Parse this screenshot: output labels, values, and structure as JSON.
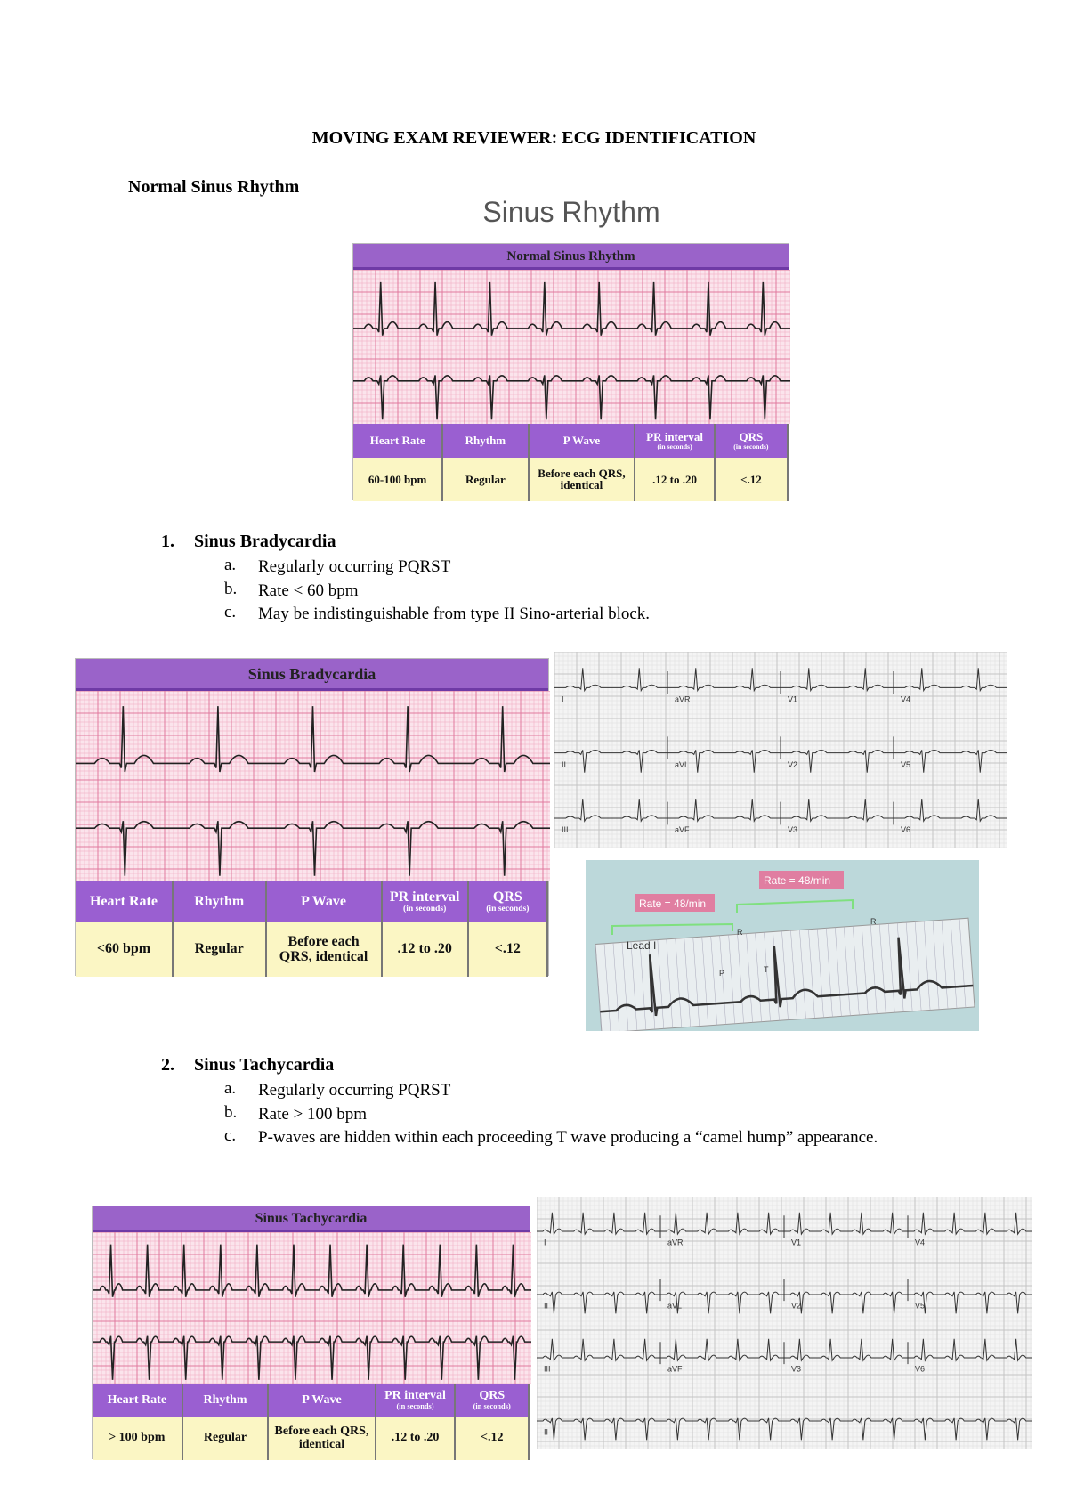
{
  "header": {
    "title": "MOVING EXAM REVIEWER: ECG IDENTIFICATION"
  },
  "normal": {
    "heading": "Normal Sinus Rhythm",
    "figure_title": "Sinus Rhythm",
    "card": {
      "title": "Normal Sinus Rhythm",
      "columns": [
        {
          "label": "Heart Rate"
        },
        {
          "label": "Rhythm"
        },
        {
          "label": "P Wave"
        },
        {
          "label": "PR interval",
          "note": "(in seconds)"
        },
        {
          "label": "QRS",
          "note": "(in seconds)"
        }
      ],
      "values": [
        "60-100 bpm",
        "Regular",
        "Before each QRS, identical",
        ".12 to .20",
        "<.12"
      ]
    }
  },
  "bradycardia": {
    "number": "1.",
    "heading": "Sinus Bradycardia",
    "items": [
      {
        "marker": "a.",
        "text": "Regularly occurring PQRST"
      },
      {
        "marker": "b.",
        "text": "Rate < 60 bpm"
      },
      {
        "marker": "c.",
        "text": "May be indistinguishable from type II Sino-arterial block."
      }
    ],
    "card": {
      "title": "Sinus Bradycardia",
      "columns": [
        {
          "label": "Heart Rate"
        },
        {
          "label": "Rhythm"
        },
        {
          "label": "P Wave"
        },
        {
          "label": "PR interval",
          "note": "(in seconds)"
        },
        {
          "label": "QRS",
          "note": "(in seconds)"
        }
      ],
      "values": [
        "<60 bpm",
        "Regular",
        "Before each QRS, identical",
        ".12 to .20",
        "<.12"
      ]
    },
    "leads": [
      "I",
      "aVR",
      "V1",
      "V4",
      "II",
      "aVL",
      "V2",
      "V5",
      "III",
      "aVF",
      "V3",
      "V6"
    ],
    "lead_i_image": {
      "rate_labels": [
        "Rate = 48/min",
        "Rate = 48/min"
      ],
      "lead": "Lead I",
      "waves": [
        "R",
        "R",
        "P",
        "T"
      ]
    }
  },
  "tachycardia": {
    "number": "2.",
    "heading": "Sinus Tachycardia",
    "items": [
      {
        "marker": "a.",
        "text": "Regularly occurring PQRST"
      },
      {
        "marker": "b.",
        "text": "Rate > 100 bpm"
      },
      {
        "marker": "c.",
        "text": "P-waves are hidden within each proceeding T wave producing a “camel hump” appearance."
      }
    ],
    "card": {
      "title": "Sinus Tachycardia",
      "columns": [
        {
          "label": "Heart Rate"
        },
        {
          "label": "Rhythm"
        },
        {
          "label": "P Wave"
        },
        {
          "label": "PR interval",
          "note": "(in seconds)"
        },
        {
          "label": "QRS",
          "note": "(in seconds)"
        }
      ],
      "values": [
        "> 100 bpm",
        "Regular",
        "Before each QRS, identical",
        ".12 to .20",
        "<.12"
      ]
    },
    "leads": [
      "I",
      "aVR",
      "V1",
      "V4",
      "II",
      "aVL",
      "V2",
      "V5",
      "III",
      "aVF",
      "V3",
      "V6",
      "II"
    ]
  }
}
